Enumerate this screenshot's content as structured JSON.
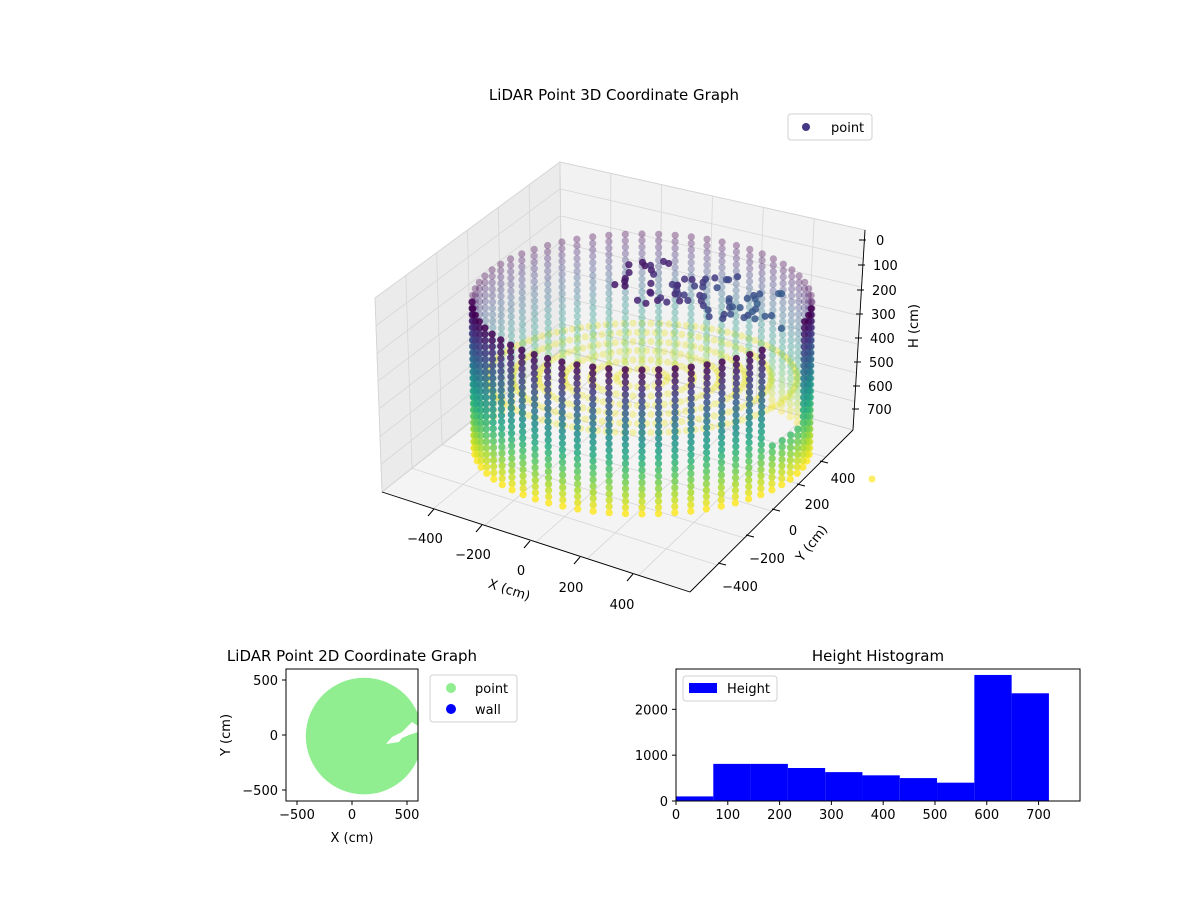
{
  "colors": {
    "viridis": [
      "#440154",
      "#472d7b",
      "#3b528b",
      "#2c728e",
      "#21918c",
      "#28ae80",
      "#5ec962",
      "#addc30",
      "#fde725"
    ],
    "point_3d_legend": "#433982",
    "point_2d": "#90ee90",
    "wall": "#0000ff",
    "hist_bar": "#0000ff",
    "pane": "#f2f2f2",
    "grid": "#d9d9d9"
  },
  "chart_data": [
    {
      "type": "scatter",
      "projection": "3d",
      "title": "LiDAR Point 3D Coordinate Graph",
      "xlabel": "X (cm)",
      "ylabel": "Y (cm)",
      "zlabel": "H (cm)",
      "xticks": [
        "−400",
        "−200",
        "0",
        "200",
        "400"
      ],
      "yticks": [
        "−400",
        "−200",
        "0",
        "200",
        "400"
      ],
      "zticks": [
        "0",
        "100",
        "200",
        "300",
        "400",
        "500",
        "600",
        "700"
      ],
      "xlim": [
        -560,
        560
      ],
      "ylim": [
        -560,
        560
      ],
      "zlim": [
        0,
        760
      ],
      "z_inverted": true,
      "legend": [
        "point"
      ],
      "legend_position": "upper right",
      "colormap": "viridis by H",
      "cylinder": {
        "radius": 500,
        "center": [
          0,
          0
        ],
        "height_range": [
          0,
          720
        ],
        "columns": 64,
        "levels": 24
      },
      "floor": {
        "h": 720,
        "rings": 6
      },
      "grid": true
    },
    {
      "type": "scatter",
      "title": "LiDAR Point 2D Coordinate Graph",
      "xlabel": "X (cm)",
      "ylabel": "Y (cm)",
      "xticks": [
        -500,
        0,
        500
      ],
      "yticks": [
        -500,
        0,
        500
      ],
      "xlim": [
        -600,
        600
      ],
      "ylim": [
        -600,
        600
      ],
      "series": [
        {
          "name": "point",
          "shape": "filled disc",
          "center": [
            110,
            -10
          ],
          "radius": 530
        },
        {
          "name": "wall",
          "values": []
        }
      ],
      "legend_position": "outside upper right"
    },
    {
      "type": "bar",
      "histogram": true,
      "title": "Height Histogram",
      "xticks": [
        0,
        100,
        200,
        300,
        400,
        500,
        600,
        700
      ],
      "yticks": [
        0,
        1000,
        2000
      ],
      "xlim": [
        0,
        780
      ],
      "ylim": [
        0,
        2880
      ],
      "bin_edges": [
        0,
        72,
        144,
        216,
        288,
        360,
        432,
        504,
        576,
        648,
        720
      ],
      "values": [
        100,
        810,
        810,
        720,
        630,
        560,
        500,
        400,
        2750,
        2350
      ],
      "series": [
        {
          "name": "Height"
        }
      ],
      "legend_position": "upper left"
    }
  ]
}
